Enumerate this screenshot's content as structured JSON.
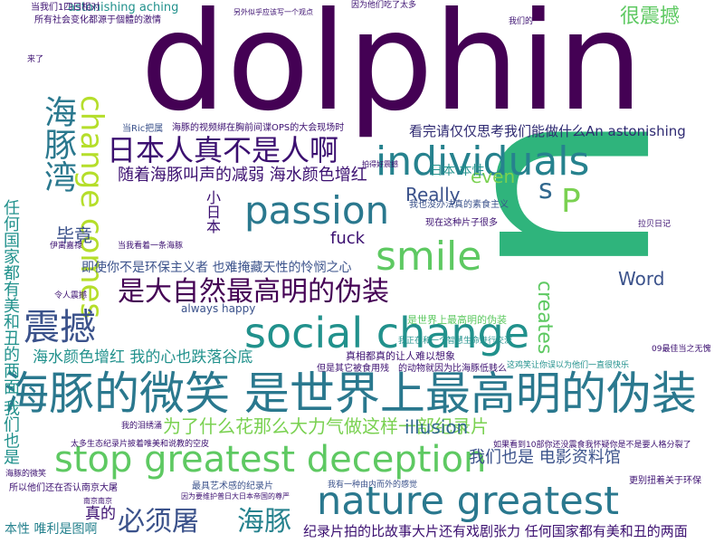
{
  "words": [
    {
      "text": "dolphin",
      "color": "#440154"
    },
    {
      "text": "u",
      "color": "#2fb47c"
    },
    {
      "text": "海豚的微笑 是世界上最高明的伪装",
      "color": "#2a788e"
    },
    {
      "text": "stop greatest deception",
      "color": "#5ec962"
    },
    {
      "text": "social change",
      "color": "#21918c"
    },
    {
      "text": "nature greatest",
      "color": "#2a788e"
    },
    {
      "text": "individuals",
      "color": "#26828e"
    },
    {
      "text": "passion",
      "color": "#2a788e"
    },
    {
      "text": "smile",
      "color": "#5ec962"
    },
    {
      "text": "change comes",
      "color": "#b5de2b"
    },
    {
      "text": "海豚湾",
      "color": "#2a788e"
    },
    {
      "text": "震撼",
      "color": "#3b528b"
    },
    {
      "text": "日本人真不是人啊",
      "color": "#3b0f70"
    },
    {
      "text": "是大自然最高明的伪装",
      "color": "#440154"
    },
    {
      "text": "s",
      "color": "#31688e"
    },
    {
      "text": "P",
      "color": "#7ad151"
    },
    {
      "text": "必须屠",
      "color": "#3b528b"
    },
    {
      "text": "海豚",
      "color": "#26828e"
    },
    {
      "text": "为了什么花那么大力气做这样一部纪录片",
      "color": "#7ad151"
    },
    {
      "text": "随着海豚叫声的减弱 海水颜色增红",
      "color": "#3b0f70"
    },
    {
      "text": "很震撼",
      "color": "#5ec962"
    },
    {
      "text": "看完请仅仅思考我们能做什么An astonishing",
      "color": "#2f2a72"
    },
    {
      "text": "Really",
      "color": "#3b528b"
    },
    {
      "text": "even",
      "color": "#7ad151"
    },
    {
      "text": "Word",
      "color": "#3b528b"
    },
    {
      "text": "creates",
      "color": "#5ec962"
    },
    {
      "text": "illusion",
      "color": "#31688e"
    },
    {
      "text": "fuck",
      "color": "#3b0f70"
    },
    {
      "text": "即使你不是环保主义者 也难掩藏天性的怜悯之心",
      "color": "#3b528b"
    },
    {
      "text": "海水颜色增红 我的心也跌落谷底",
      "color": "#21918c"
    },
    {
      "text": "我们也是 电影资料馆",
      "color": "#3b528b"
    },
    {
      "text": "纪录片拍的比故事大片还有戏剧张力 任何国家都有美和丑的两面",
      "color": "#3b0f70"
    },
    {
      "text": "任何国家都有美和丑的两面 我们也是",
      "color": "#21918c"
    },
    {
      "text": "真的",
      "color": "#3b0f70"
    },
    {
      "text": "毕竟",
      "color": "#3b528b"
    },
    {
      "text": "日本 本性",
      "color": "#21918c"
    },
    {
      "text": "always happy",
      "color": "#3b528b"
    },
    {
      "text": "小日本",
      "color": "#3b0f70"
    },
    {
      "text": "本性 唯利是图啊",
      "color": "#26828e"
    },
    {
      "text": "astonishing aching",
      "color": "#21918c"
    },
    {
      "text": "当我们1四日相对",
      "color": "#3b0f70"
    },
    {
      "text": "所有社会变化都源于個體的激情",
      "color": "#3b0f70"
    },
    {
      "text": "因为他们吃了太多",
      "color": "#3b0f70"
    },
    {
      "text": "海豚的视频绑在胸前间谍OPS的大会现场时",
      "color": "#3b0f70"
    },
    {
      "text": "当Ric把属",
      "color": "#3b528b"
    },
    {
      "text": "是世界上最高明的伪装",
      "color": "#5ec962"
    },
    {
      "text": "真相都真的让人难以想象",
      "color": "#3b0f70"
    },
    {
      "text": "但是其它被食用残",
      "color": "#3b0f70"
    },
    {
      "text": "的动物就因为比海豚低贱么",
      "color": "#3b0f70"
    },
    {
      "text": "这鸡笑让你误以为他们一直很快乐",
      "color": "#21918c"
    },
    {
      "text": "最具艺术感的纪录片",
      "color": "#3b528b"
    },
    {
      "text": "我有一种由内而外的感觉",
      "color": "#3b528b"
    },
    {
      "text": "太多生态纪录片披着唯美和说教的空皮",
      "color": "#3b0f70"
    },
    {
      "text": "如果看到10部你还没震食我怀疑你是不是要人格分裂了",
      "color": "#3b0f70"
    },
    {
      "text": "更别扭着关于环保",
      "color": "#3b0f70"
    },
    {
      "text": "所以他们还在否认南京大屠",
      "color": "#3b0f70"
    },
    {
      "text": "现在这种片子很多",
      "color": "#3b0f70"
    },
    {
      "text": "我也没办法真的素食主义",
      "color": "#3b528b"
    },
    {
      "text": "我正在和一个智慧生命进行交流",
      "color": "#21918c"
    },
    {
      "text": "当我看着一条海豚",
      "color": "#3b0f70"
    },
    {
      "text": "令人震撼",
      "color": "#3b0f70"
    },
    {
      "text": "我的泪绣涌",
      "color": "#3b0f70"
    },
    {
      "text": "海豚的微笑",
      "color": "#3b0f70"
    },
    {
      "text": "09最佳当之无愧",
      "color": "#3b0f70"
    },
    {
      "text": "拉贝日记",
      "color": "#3b0f70"
    },
    {
      "text": "伊离嘉禄",
      "color": "#3b0f70"
    },
    {
      "text": "南京南京",
      "color": "#3b0f70"
    },
    {
      "text": "另外似乎应该写一个观点",
      "color": "#3b0f70"
    },
    {
      "text": "拍得好震撼",
      "color": "#3b0f70"
    },
    {
      "text": "我们的",
      "color": "#3b0f70"
    },
    {
      "text": "因为要维护普日大日本帝国的尊严",
      "color": "#3b0f70"
    },
    {
      "text": "来了",
      "color": "#3b0f70"
    }
  ]
}
